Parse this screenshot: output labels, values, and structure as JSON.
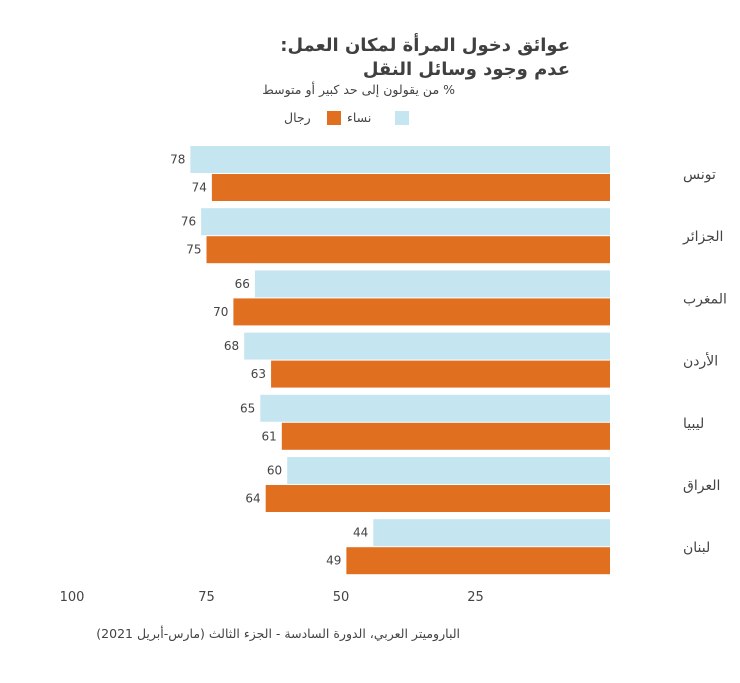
{
  "chart_data": {
    "type": "bar",
    "orientation": "horizontal",
    "x_reversed": true,
    "title": "عوائق دخول المرأة لمكان العمل: عدم وجود وسائل النقل",
    "subtitle": "% من يقولون إلى حد كبير أو متوسط",
    "categories": [
      "تونس",
      "الجزائر",
      "المغرب",
      "الأردن",
      "ليبيا",
      "العراق",
      "لبنان"
    ],
    "series": [
      {
        "name": "نساء",
        "color": "#c5e6f0",
        "values": [
          78,
          76,
          66,
          68,
          65,
          60,
          44
        ]
      },
      {
        "name": "رجال",
        "color": "#e07020",
        "values": [
          74,
          75,
          70,
          63,
          61,
          64,
          49
        ]
      }
    ],
    "xlim": [
      0,
      100
    ],
    "xticks": [
      "100",
      "75",
      "50",
      "25"
    ],
    "xtick_values": [
      100,
      75,
      50,
      25
    ],
    "legend_position": "top"
  },
  "footer": {
    "source": "الباروميتر العربي، الدورة السادسة - الجزء الثالث (مارس-أبريل 2021)"
  }
}
